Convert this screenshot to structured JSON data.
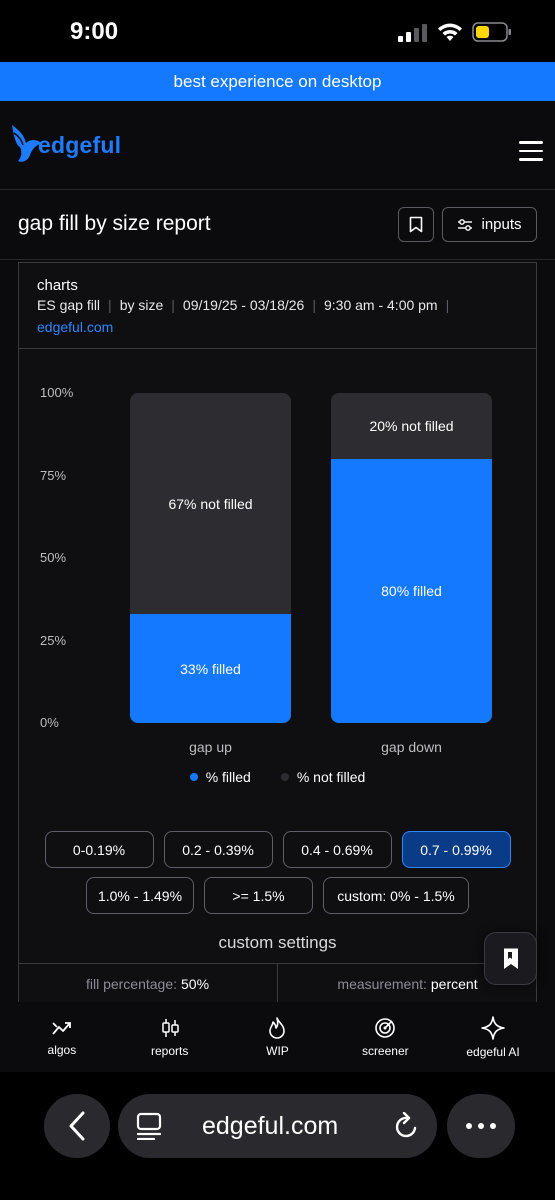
{
  "status_bar": {
    "time": "9:00"
  },
  "banner": {
    "text": "best experience on desktop"
  },
  "header": {
    "logo_text": "edgeful"
  },
  "page": {
    "title": "gap fill by size report",
    "inputs_label": "inputs"
  },
  "card": {
    "title": "charts",
    "meta": [
      "ES gap fill",
      "by size",
      "09/19/25 - 03/18/26",
      "9:30 am - 4:00 pm"
    ],
    "link": "edgeful.com"
  },
  "chart_data": {
    "type": "bar",
    "stacked": true,
    "categories": [
      "gap up",
      "gap down"
    ],
    "series": [
      {
        "name": "% filled",
        "values": [
          33,
          80
        ],
        "color": "#1479ff"
      },
      {
        "name": "% not filled",
        "values": [
          67,
          20
        ],
        "color": "#2c2c31"
      }
    ],
    "data_labels": {
      "filled": [
        "33% filled",
        "80% filled"
      ],
      "not_filled": [
        "67% not filled",
        "20% not filled"
      ]
    },
    "y_ticks": [
      "100%",
      "75%",
      "50%",
      "25%",
      "0%"
    ],
    "ylim": [
      0,
      100
    ],
    "legend_position": "bottom",
    "grid": false
  },
  "size_buttons": {
    "row1": [
      "0-0.19%",
      "0.2 - 0.39%",
      "0.4 - 0.69%",
      "0.7 - 0.99%"
    ],
    "row2": [
      "1.0% - 1.49%",
      ">= 1.5%",
      "custom: 0% - 1.5%"
    ],
    "selected": "0.7 - 0.99%"
  },
  "custom_settings": {
    "title": "custom settings",
    "fill_label": "fill percentage:",
    "fill_value": "50%",
    "measurement_label": "measurement:",
    "measurement_value": "percent"
  },
  "bottom_nav": [
    {
      "label": "algos",
      "icon": "trend-up-icon"
    },
    {
      "label": "reports",
      "icon": "candlestick-icon"
    },
    {
      "label": "WIP",
      "icon": "flame-icon"
    },
    {
      "label": "screener",
      "icon": "radar-icon"
    },
    {
      "label": "edgeful AI",
      "icon": "sparkle-icon"
    }
  ],
  "browser": {
    "url": "edgeful.com"
  },
  "colors": {
    "accent": "#1479ff",
    "background": "#0b0b0d",
    "bar_track": "#2c2c31"
  }
}
